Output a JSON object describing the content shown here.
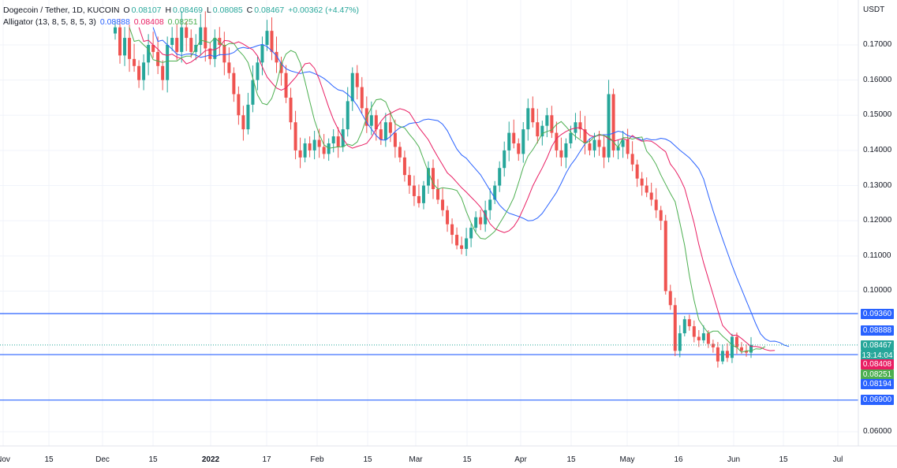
{
  "header": {
    "symbol": "Dogecoin / Tether, 1D, KUCOIN",
    "o_label": "O",
    "o_value": "0.08107",
    "h_label": "H",
    "h_value": "0.08469",
    "l_label": "L",
    "l_value": "0.08085",
    "c_label": "C",
    "c_value": "0.08467",
    "change": "+0.00362 (+4.47%)",
    "alligator_label": "Alligator (13, 8, 5, 8, 5, 3)",
    "jaw_value": "0.08888",
    "teeth_value": "0.08408",
    "lips_value": "0.08251"
  },
  "colors": {
    "up": "#26a69a",
    "down": "#ef5350",
    "jaw": "#2962ff",
    "teeth": "#e91e63",
    "lips": "#4caf50",
    "hline": "#2962ff",
    "grid": "#f0f3fa"
  },
  "badges": {
    "hline_top": "0.09360",
    "jaw": "0.08888",
    "last_price": "0.08467",
    "countdown": "13:14:04",
    "teeth": "0.08408",
    "lips": "0.08251",
    "hline_mid": "0.08194",
    "hline_bottom": "0.06900"
  },
  "chart_data": {
    "type": "candlestick",
    "ylabel": "USDT",
    "y_ticks": [
      "0.17000",
      "0.16000",
      "0.15000",
      "0.14000",
      "0.13000",
      "0.12000",
      "0.11000",
      "0.10000",
      "0.06000"
    ],
    "x_ticks": [
      "Nov",
      "15",
      "Dec",
      "15",
      "2022",
      "17",
      "Feb",
      "15",
      "Mar",
      "15",
      "Apr",
      "15",
      "May",
      "16",
      "Jun",
      "15",
      "Jul"
    ],
    "horizontal_lines": [
      0.0936,
      0.08194,
      0.069
    ],
    "last_price": 0.08467,
    "close_series": [
      0.175,
      0.167,
      0.172,
      0.166,
      0.164,
      0.16,
      0.165,
      0.17,
      0.168,
      0.164,
      0.16,
      0.17,
      0.172,
      0.168,
      0.175,
      0.172,
      0.168,
      0.17,
      0.175,
      0.169,
      0.166,
      0.172,
      0.17,
      0.165,
      0.162,
      0.156,
      0.15,
      0.146,
      0.153,
      0.16,
      0.165,
      0.17,
      0.174,
      0.168,
      0.165,
      0.162,
      0.155,
      0.148,
      0.14,
      0.138,
      0.142,
      0.14,
      0.143,
      0.141,
      0.139,
      0.142,
      0.144,
      0.141,
      0.146,
      0.154,
      0.162,
      0.158,
      0.152,
      0.147,
      0.15,
      0.146,
      0.143,
      0.148,
      0.145,
      0.141,
      0.138,
      0.133,
      0.13,
      0.127,
      0.125,
      0.13,
      0.135,
      0.129,
      0.126,
      0.123,
      0.119,
      0.116,
      0.113,
      0.112,
      0.115,
      0.118,
      0.121,
      0.119,
      0.123,
      0.126,
      0.13,
      0.135,
      0.14,
      0.145,
      0.142,
      0.139,
      0.146,
      0.152,
      0.148,
      0.144,
      0.147,
      0.15,
      0.145,
      0.14,
      0.138,
      0.142,
      0.145,
      0.148,
      0.146,
      0.142,
      0.14,
      0.143,
      0.141,
      0.138,
      0.156,
      0.14,
      0.141,
      0.143,
      0.139,
      0.136,
      0.132,
      0.13,
      0.128,
      0.126,
      0.123,
      0.12,
      0.1,
      0.096,
      0.083,
      0.088,
      0.092,
      0.09,
      0.087,
      0.086,
      0.088,
      0.085,
      0.084,
      0.08,
      0.083,
      0.081,
      0.087,
      0.084,
      0.083,
      0.0825,
      0.0847
    ],
    "jaw_values_shown": 0.08888,
    "teeth_values_shown": 0.08408,
    "lips_values_shown": 0.08251
  }
}
